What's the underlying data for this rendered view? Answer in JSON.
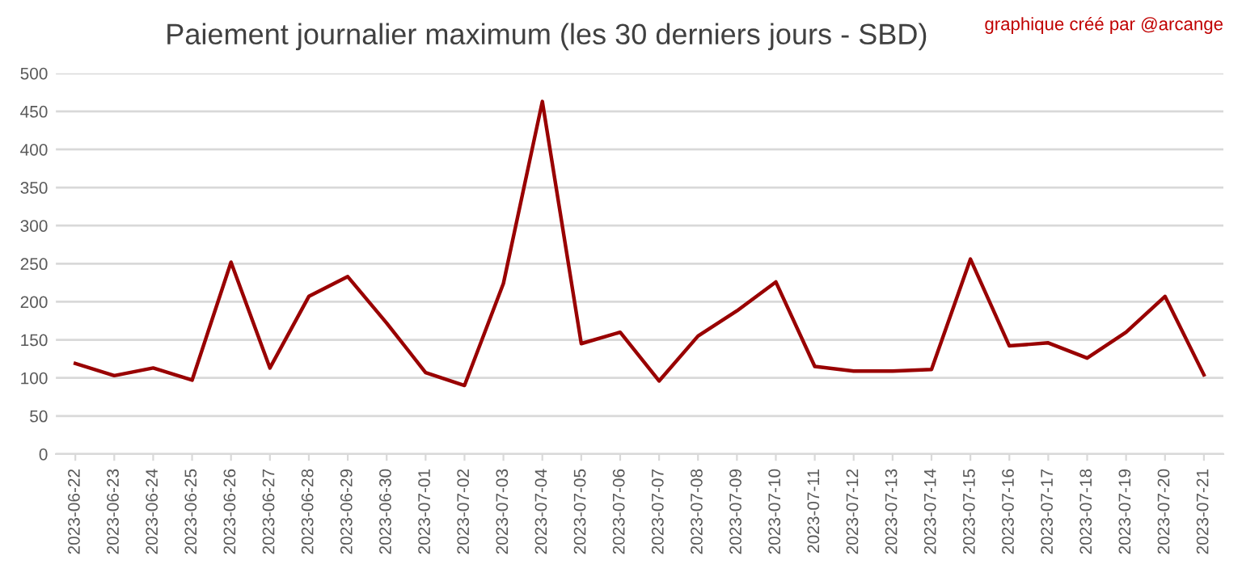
{
  "chart_data": {
    "type": "line",
    "title": "Paiement journalier maximum (les 30 derniers jours - SBD)",
    "annotations": [
      "graphique créé par @arcange"
    ],
    "categories": [
      "2023-06-22",
      "2023-06-23",
      "2023-06-24",
      "2023-06-25",
      "2023-06-26",
      "2023-06-27",
      "2023-06-28",
      "2023-06-29",
      "2023-06-30",
      "2023-07-01",
      "2023-07-02",
      "2023-07-03",
      "2023-07-04",
      "2023-07-05",
      "2023-07-06",
      "2023-07-07",
      "2023-07-08",
      "2023-07-09",
      "2023-07-10",
      "2023-07-11",
      "2023-07-12",
      "2023-07-13",
      "2023-07-14",
      "2023-07-15",
      "2023-07-16",
      "2023-07-17",
      "2023-07-18",
      "2023-07-19",
      "2023-07-20",
      "2023-07-21"
    ],
    "series": [
      {
        "color": "#990000",
        "values": [
          119,
          103,
          113,
          97,
          252,
          113,
          207,
          233,
          172,
          107,
          90,
          224,
          463,
          145,
          160,
          96,
          155,
          188,
          226,
          115,
          109,
          109,
          111,
          256,
          142,
          146,
          126,
          160,
          207,
          104
        ]
      }
    ],
    "ylim": [
      0,
      500
    ],
    "yticks": [
      0,
      50,
      100,
      150,
      200,
      250,
      300,
      350,
      400,
      450,
      500
    ],
    "grid": "y",
    "legend": false,
    "marker": "none",
    "line_style": "solid"
  }
}
